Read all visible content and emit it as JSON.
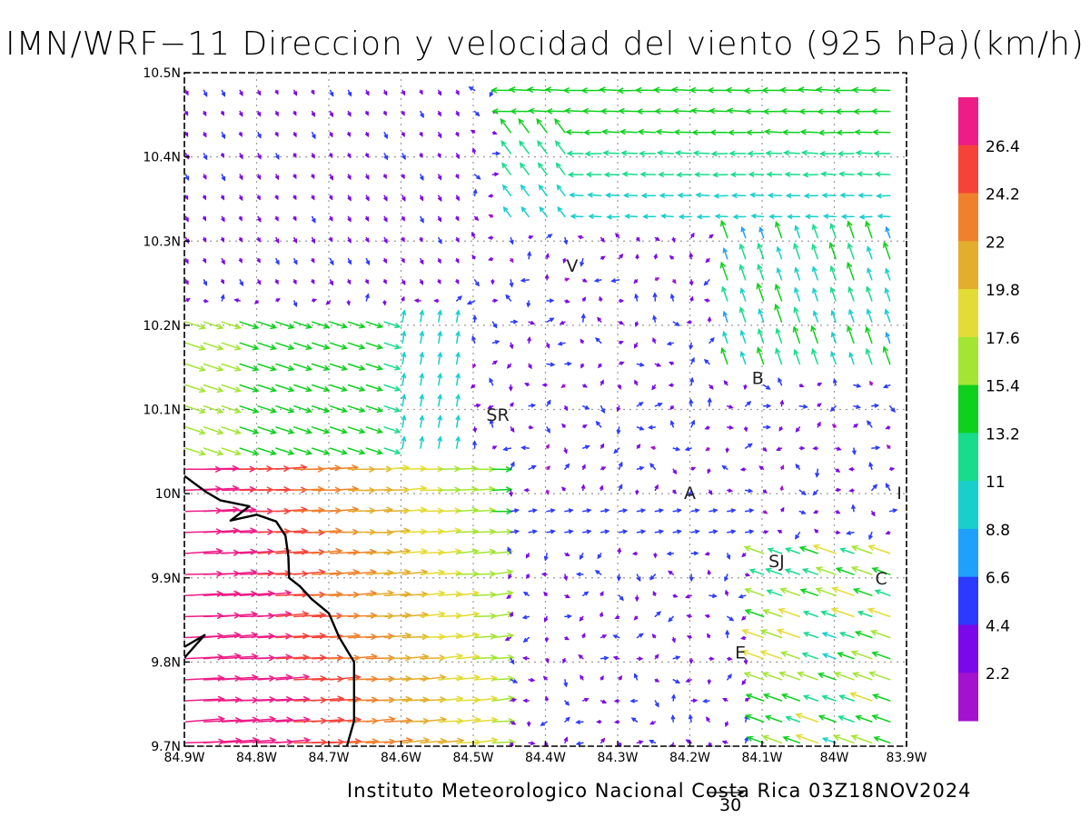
{
  "title": "IMN/WRF−11 Direccion y velocidad del viento (925 hPa)(km/h)",
  "footer": "Instituto Meteorologico Nacional Costa Rica 03Z18NOV2024",
  "reference_vector": {
    "label": "30"
  },
  "axes": {
    "lon_ticks": [
      {
        "value": -84.9,
        "label": "84.9W"
      },
      {
        "value": -84.8,
        "label": "84.8W"
      },
      {
        "value": -84.7,
        "label": "84.7W"
      },
      {
        "value": -84.6,
        "label": "84.6W"
      },
      {
        "value": -84.5,
        "label": "84.5W"
      },
      {
        "value": -84.4,
        "label": "84.4W"
      },
      {
        "value": -84.3,
        "label": "84.3W"
      },
      {
        "value": -84.2,
        "label": "84.2W"
      },
      {
        "value": -84.1,
        "label": "84.1W"
      },
      {
        "value": -84.0,
        "label": "84W"
      },
      {
        "value": -83.9,
        "label": "83.9W"
      }
    ],
    "lat_ticks": [
      {
        "value": 10.5,
        "label": "10.5N"
      },
      {
        "value": 10.4,
        "label": "10.4N"
      },
      {
        "value": 10.3,
        "label": "10.3N"
      },
      {
        "value": 10.2,
        "label": "10.2N"
      },
      {
        "value": 10.1,
        "label": "10.1N"
      },
      {
        "value": 10.0,
        "label": "10N"
      },
      {
        "value": 9.9,
        "label": "9.9N"
      },
      {
        "value": 9.8,
        "label": "9.8N"
      },
      {
        "value": 9.7,
        "label": "9.7N"
      }
    ],
    "lon_range": [
      -84.9,
      -83.9
    ],
    "lat_range": [
      9.7,
      10.5
    ]
  },
  "colorbar": {
    "labels": [
      "26.4",
      "24.2",
      "22",
      "19.8",
      "17.6",
      "15.4",
      "13.2",
      "11",
      "8.8",
      "6.6",
      "4.4",
      "2.2"
    ],
    "colors": [
      "#ee1c86",
      "#f5433a",
      "#f0812c",
      "#e3ad2e",
      "#e3dc36",
      "#a3e533",
      "#0dd11d",
      "#17dc8c",
      "#18cfcb",
      "#1fa0fa",
      "#2c3aff",
      "#7a08e8",
      "#a312cf"
    ]
  },
  "stations": [
    {
      "label": "V",
      "lon": -84.363,
      "lat": 10.271
    },
    {
      "label": "B",
      "lon": -84.106,
      "lat": 10.138
    },
    {
      "label": "SR",
      "lon": -84.466,
      "lat": 10.094
    },
    {
      "label": "A",
      "lon": -84.2,
      "lat": 10.001
    },
    {
      "label": "I",
      "lon": -83.91,
      "lat": 10.001
    },
    {
      "label": "SJ",
      "lon": -84.08,
      "lat": 9.92
    },
    {
      "label": "C",
      "lon": -83.935,
      "lat": 9.9
    },
    {
      "label": "E",
      "lon": -84.13,
      "lat": 9.812
    }
  ],
  "coastline": [
    [
      -84.9,
      10.021
    ],
    [
      -84.87,
      10.002
    ],
    [
      -84.85,
      9.992
    ],
    [
      -84.81,
      9.985
    ],
    [
      -84.836,
      9.968
    ],
    [
      -84.8,
      9.975
    ],
    [
      -84.773,
      9.967
    ],
    [
      -84.76,
      9.95
    ],
    [
      -84.756,
      9.925
    ],
    [
      -84.755,
      9.9
    ],
    [
      -84.74,
      9.89
    ],
    [
      -84.724,
      9.875
    ],
    [
      -84.7,
      9.858
    ],
    [
      -84.686,
      9.83
    ],
    [
      -84.665,
      9.8
    ],
    [
      -84.665,
      9.775
    ],
    [
      -84.665,
      9.73
    ],
    [
      -84.675,
      9.7
    ]
  ],
  "coastline_nicoya": [
    [
      -84.9,
      9.818
    ],
    [
      -84.872,
      9.832
    ],
    [
      -84.9,
      9.805
    ]
  ],
  "wind_field": {
    "units": "km/h",
    "grid_spacing_deg": 0.025,
    "model": "WRF-11 925 hPa"
  }
}
